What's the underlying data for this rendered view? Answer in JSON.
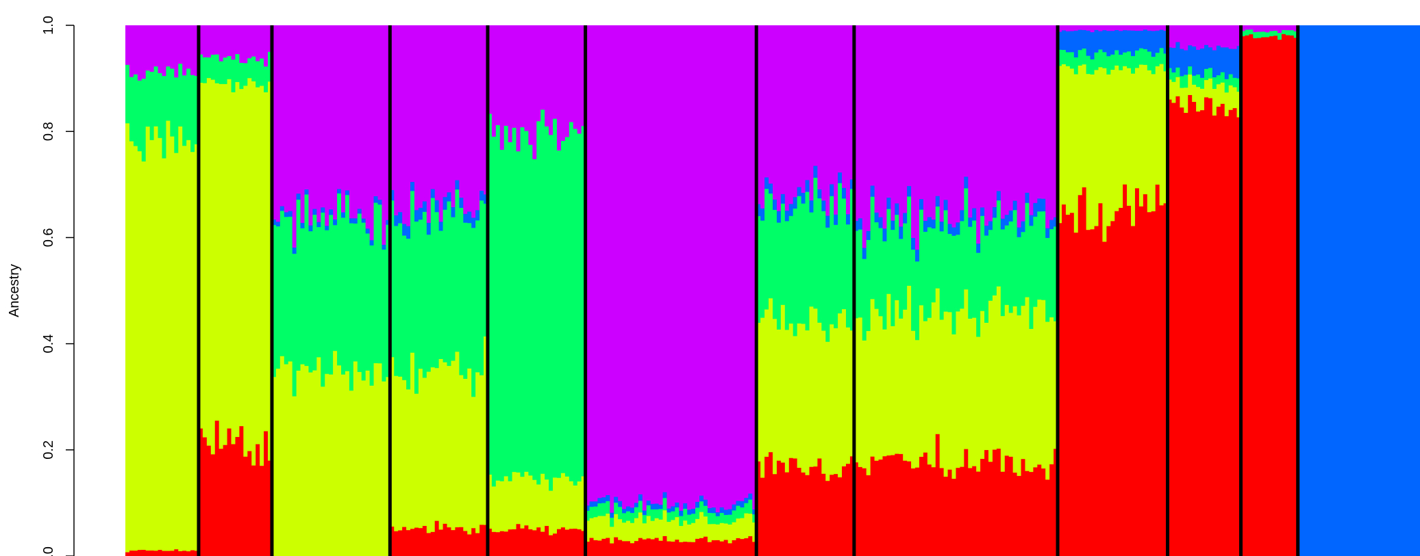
{
  "chart_data": {
    "type": "bar",
    "subtype": "stacked-ancestry",
    "ylabel": "Ancestry",
    "ylim": [
      0,
      1
    ],
    "yticks": [
      0,
      0.2,
      0.4,
      0.6,
      0.8,
      1
    ],
    "ytick_labels": [
      "0.0",
      "0.2",
      "0.4",
      "0.6",
      "0.8",
      "1.0"
    ],
    "grid": false,
    "legend": "none",
    "colors": [
      "#FF0000",
      "#CCFF00",
      "#00FF66",
      "#0066FF",
      "#CC00FF"
    ],
    "groups": [
      {
        "n": 18,
        "comp": [
          0.01,
          0.77,
          0.13,
          0.0,
          0.09
        ]
      },
      {
        "n": 18,
        "comp": [
          0.21,
          0.68,
          0.05,
          0.0,
          0.06
        ]
      },
      {
        "n": 29,
        "comp": [
          0.0,
          0.34,
          0.29,
          0.01,
          0.36
        ]
      },
      {
        "n": 24,
        "comp": [
          0.05,
          0.3,
          0.29,
          0.02,
          0.34
        ]
      },
      {
        "n": 24,
        "comp": [
          0.05,
          0.1,
          0.65,
          0.0,
          0.2
        ]
      },
      {
        "n": 42,
        "comp": [
          0.03,
          0.04,
          0.02,
          0.01,
          0.9
        ]
      },
      {
        "n": 24,
        "comp": [
          0.17,
          0.27,
          0.22,
          0.02,
          0.32
        ]
      },
      {
        "n": 50,
        "comp": [
          0.18,
          0.28,
          0.17,
          0.02,
          0.35
        ]
      },
      {
        "n": 27,
        "comp": [
          0.65,
          0.27,
          0.03,
          0.04,
          0.01
        ]
      },
      {
        "n": 18,
        "comp": [
          0.85,
          0.04,
          0.02,
          0.05,
          0.04
        ]
      },
      {
        "n": 14,
        "comp": [
          0.98,
          0.0,
          0.01,
          0.0,
          0.01
        ]
      },
      {
        "n": 30,
        "comp": [
          0.0,
          0.0,
          0.0,
          1.0,
          0.0
        ]
      }
    ]
  }
}
